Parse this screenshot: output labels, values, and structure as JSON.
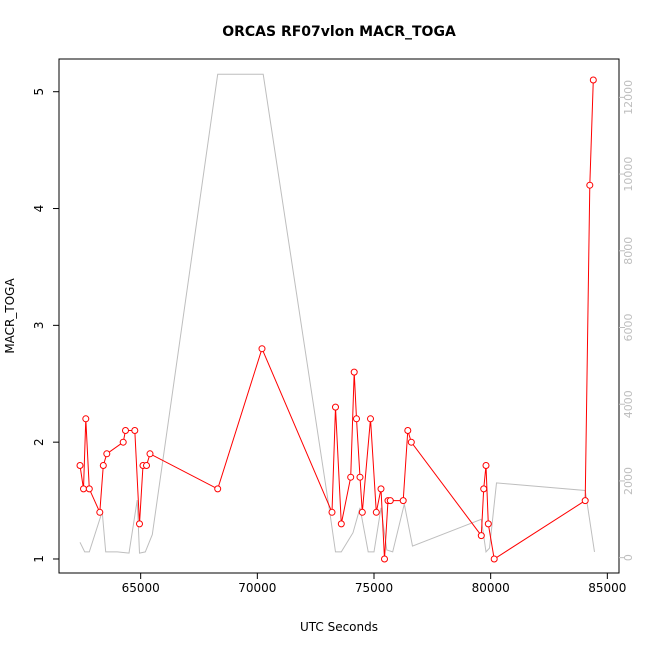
{
  "chart_data": {
    "type": "line",
    "title": "ORCAS RF07vlon MACR_TOGA",
    "xlabel": "UTC Seconds",
    "ylabel": "MACR_TOGA",
    "xlim": [
      61500,
      85500
    ],
    "ylim": [
      0.88,
      5.28
    ],
    "y2lim": [
      -400,
      13000
    ],
    "x_ticks": [
      65000,
      70000,
      75000,
      80000,
      85000
    ],
    "x_tick_labels": [
      "65000",
      "70000",
      "75000",
      "80000",
      "85000"
    ],
    "y_ticks": [
      1,
      2,
      3,
      4,
      5
    ],
    "y_tick_labels": [
      "1",
      "2",
      "3",
      "4",
      "5"
    ],
    "y2_ticks": [
      0,
      2000,
      4000,
      6000,
      8000,
      10000,
      12000
    ],
    "y2_tick_labels": [
      "0",
      "2000",
      "4000",
      "6000",
      "8000",
      "10000",
      "12000"
    ],
    "grid": false,
    "series": [
      {
        "color": "#ff0000",
        "axis": "left",
        "marker": "circle",
        "x": [
          62400,
          62550,
          62650,
          62800,
          63250,
          63400,
          63550,
          64250,
          64350,
          64750,
          64950,
          65100,
          65250,
          65400,
          68300,
          70200,
          73200,
          73350,
          73600,
          74000,
          74150,
          74250,
          74400,
          74500,
          74850,
          75100,
          75300,
          75450,
          75600,
          75700,
          76250,
          76450,
          76600,
          79600,
          79700,
          79800,
          79900,
          80150,
          84050,
          84250,
          84400
        ],
        "y": [
          1.8,
          1.6,
          2.2,
          1.6,
          1.4,
          1.8,
          1.9,
          2.0,
          2.1,
          2.1,
          1.3,
          1.8,
          1.8,
          1.9,
          1.6,
          2.8,
          1.4,
          2.3,
          1.3,
          1.7,
          2.6,
          2.2,
          1.7,
          1.4,
          2.2,
          1.4,
          1.6,
          1.0,
          1.5,
          1.5,
          1.5,
          2.1,
          2.0,
          1.2,
          1.6,
          1.8,
          1.3,
          1.0,
          1.5,
          4.2,
          5.1
        ]
      },
      {
        "color": "#bebebe",
        "axis": "right",
        "x": [
          62400,
          62600,
          62800,
          63350,
          63500,
          64000,
          64500,
          64850,
          64950,
          65200,
          65500,
          68300,
          70250,
          73100,
          73350,
          73600,
          74100,
          74400,
          74750,
          75000,
          75300,
          75550,
          75800,
          76300,
          76650,
          79600,
          79800,
          79950,
          80250,
          84050,
          84450
        ],
        "y": [
          400,
          150,
          150,
          1200,
          150,
          150,
          120,
          1500,
          120,
          150,
          600,
          12600,
          12600,
          1200,
          150,
          150,
          650,
          1300,
          150,
          150,
          1300,
          200,
          150,
          1400,
          300,
          1000,
          150,
          250,
          1950,
          1750,
          150
        ]
      }
    ]
  }
}
